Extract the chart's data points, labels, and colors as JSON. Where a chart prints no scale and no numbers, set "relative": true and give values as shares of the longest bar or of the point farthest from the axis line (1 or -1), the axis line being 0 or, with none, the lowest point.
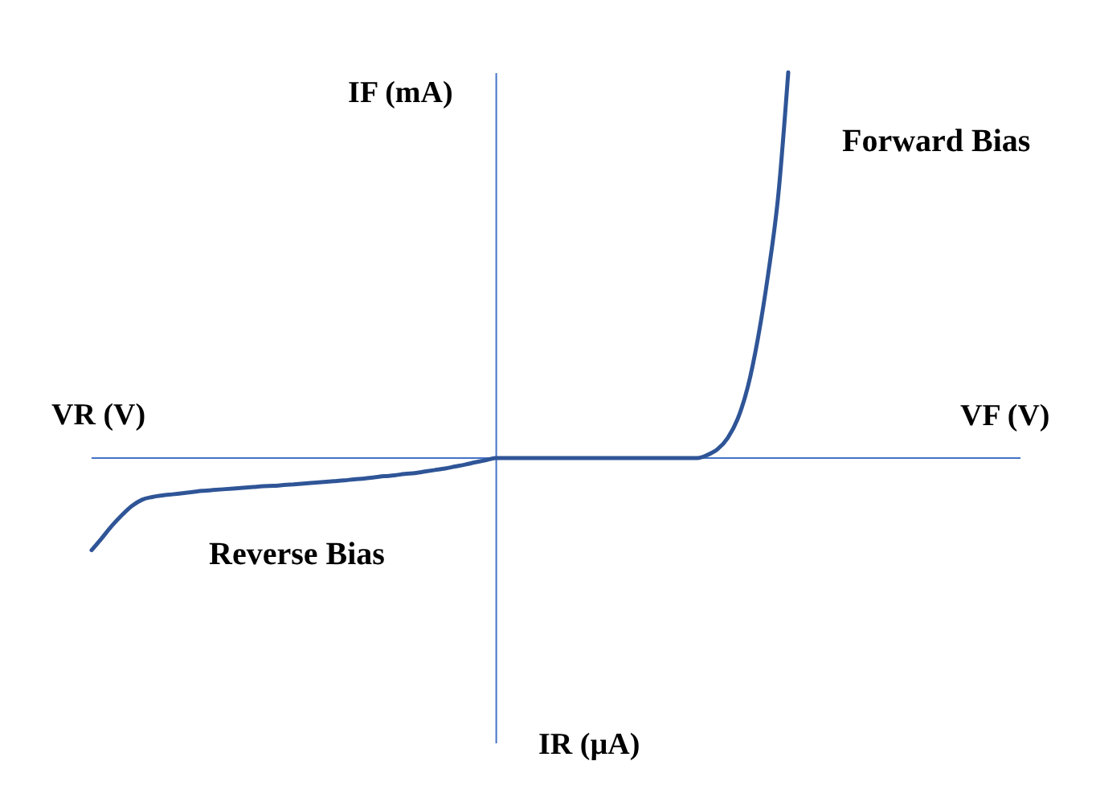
{
  "chart_data": {
    "type": "line",
    "relative": true,
    "tick_labels": false,
    "xlabel": "VF (V)",
    "ylabel": "IF (mA)",
    "annotations": [
      "VR (V)",
      "IR (µA)",
      "Forward Bias",
      "Reverse Bias"
    ],
    "ref_lines": [
      {
        "axis": "y",
        "value": 0,
        "color": "#4472c4"
      }
    ],
    "categories": [
      null,
      null,
      null,
      null,
      null,
      null,
      null,
      null,
      null,
      null,
      null,
      null,
      null,
      null,
      null,
      null,
      null,
      null,
      null,
      null,
      null,
      null,
      null,
      null,
      null,
      null,
      null,
      null,
      null,
      null,
      null,
      null,
      null,
      null,
      null,
      null,
      null,
      null,
      null,
      null,
      null,
      null,
      null,
      null,
      null,
      null,
      null,
      null,
      null,
      null,
      null,
      null,
      null,
      null,
      null,
      null,
      null,
      null,
      null,
      null,
      null,
      null,
      null,
      null,
      null,
      null,
      null,
      null,
      null,
      null,
      null,
      null,
      null,
      null,
      null,
      null,
      null,
      null,
      null,
      null,
      null,
      null,
      null,
      null,
      null,
      null,
      null,
      null,
      null,
      null,
      null,
      null,
      null
    ],
    "series": [
      {
        "color": "#2f5597",
        "values": [
          -0.239,
          -0.208,
          -0.176,
          -0.148,
          -0.124,
          -0.108,
          -0.101,
          -0.097,
          -0.094,
          -0.091,
          -0.088,
          -0.085,
          -0.083,
          -0.081,
          -0.079,
          -0.077,
          -0.075,
          -0.073,
          -0.072,
          -0.07,
          -0.068,
          -0.066,
          -0.064,
          -0.062,
          -0.06,
          -0.058,
          -0.055,
          -0.053,
          -0.05,
          -0.047,
          -0.045,
          -0.041,
          -0.039,
          -0.035,
          -0.031,
          -0.027,
          -0.022,
          -0.017,
          -0.011,
          -0.006,
          0,
          0,
          0,
          0,
          0,
          0,
          0,
          0,
          0,
          0,
          0,
          0,
          0,
          0,
          0,
          0,
          0,
          0,
          0,
          0,
          0,
          0.008,
          0.023,
          0.052,
          0.102,
          0.185,
          0.311,
          0.475,
          0.678,
          1,
          null,
          null,
          null,
          null,
          null,
          null,
          null,
          null,
          null,
          null,
          null,
          null,
          null,
          null,
          null,
          null,
          null,
          null,
          null,
          null,
          null,
          null,
          null
        ]
      }
    ]
  }
}
